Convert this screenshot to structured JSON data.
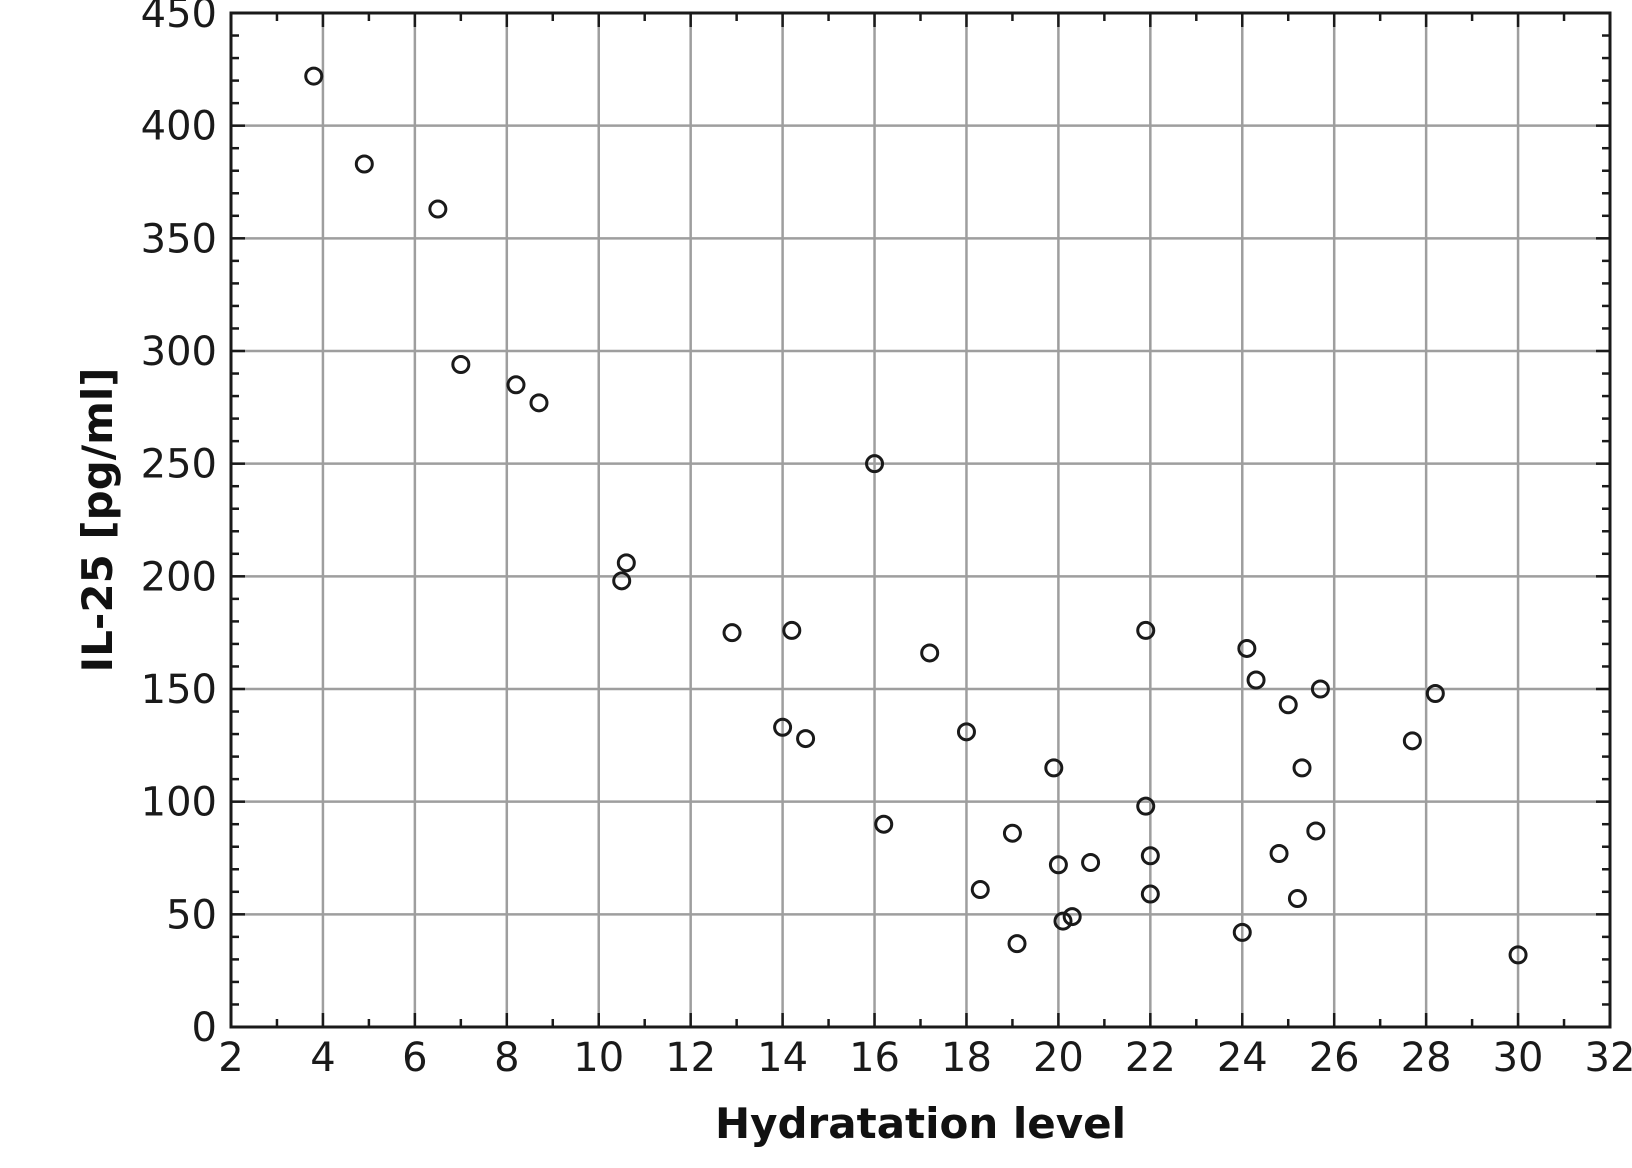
{
  "chart_data": {
    "type": "scatter",
    "xlabel": "Hydratation level",
    "ylabel": "IL-25 [pg/ml]",
    "xlim": [
      2,
      32
    ],
    "ylim": [
      0,
      450
    ],
    "x_ticks": [
      2,
      4,
      6,
      8,
      10,
      12,
      14,
      16,
      18,
      20,
      22,
      24,
      26,
      28,
      30,
      32
    ],
    "y_ticks": [
      0,
      50,
      100,
      150,
      200,
      250,
      300,
      350,
      400,
      450
    ],
    "grid": true,
    "marker": "open-circle",
    "points": [
      {
        "x": 3.8,
        "y": 422
      },
      {
        "x": 4.9,
        "y": 383
      },
      {
        "x": 6.5,
        "y": 363
      },
      {
        "x": 7.0,
        "y": 294
      },
      {
        "x": 8.2,
        "y": 285
      },
      {
        "x": 8.7,
        "y": 277
      },
      {
        "x": 10.5,
        "y": 198
      },
      {
        "x": 10.6,
        "y": 206
      },
      {
        "x": 12.9,
        "y": 175
      },
      {
        "x": 14.0,
        "y": 133
      },
      {
        "x": 14.2,
        "y": 176
      },
      {
        "x": 14.5,
        "y": 128
      },
      {
        "x": 16.0,
        "y": 250
      },
      {
        "x": 16.2,
        "y": 90
      },
      {
        "x": 17.2,
        "y": 166
      },
      {
        "x": 18.0,
        "y": 131
      },
      {
        "x": 18.3,
        "y": 61
      },
      {
        "x": 19.0,
        "y": 86
      },
      {
        "x": 19.1,
        "y": 37
      },
      {
        "x": 19.9,
        "y": 115
      },
      {
        "x": 20.0,
        "y": 72
      },
      {
        "x": 20.1,
        "y": 47
      },
      {
        "x": 20.3,
        "y": 49
      },
      {
        "x": 20.7,
        "y": 73
      },
      {
        "x": 21.9,
        "y": 98
      },
      {
        "x": 21.9,
        "y": 176
      },
      {
        "x": 22.0,
        "y": 59
      },
      {
        "x": 22.0,
        "y": 76
      },
      {
        "x": 24.0,
        "y": 42
      },
      {
        "x": 24.1,
        "y": 168
      },
      {
        "x": 24.3,
        "y": 154
      },
      {
        "x": 24.8,
        "y": 77
      },
      {
        "x": 25.0,
        "y": 143
      },
      {
        "x": 25.2,
        "y": 57
      },
      {
        "x": 25.3,
        "y": 115
      },
      {
        "x": 25.6,
        "y": 87
      },
      {
        "x": 25.7,
        "y": 150
      },
      {
        "x": 27.7,
        "y": 127
      },
      {
        "x": 28.2,
        "y": 148
      },
      {
        "x": 30.0,
        "y": 32
      }
    ]
  }
}
